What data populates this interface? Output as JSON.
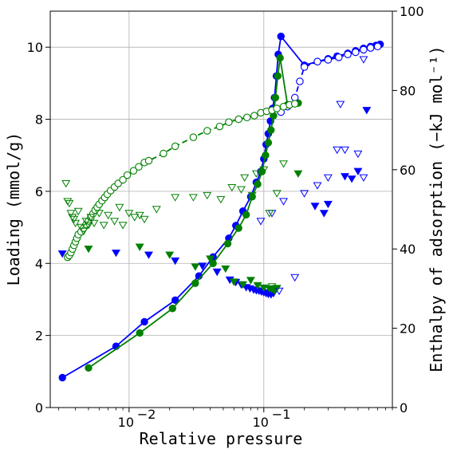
{
  "chart_data": {
    "type": "scatter",
    "xlabel": "Relative pressure",
    "ylabel": "Loading (mmol/g)",
    "y2label": "Enthalpy of adsorption (−kJ mol⁻¹)",
    "xscale": "log",
    "xlim": [
      0.0026,
      0.9
    ],
    "ylim": [
      0,
      11
    ],
    "y2lim": [
      0,
      100
    ],
    "grid": true,
    "x_ticks": [
      {
        "value": 0.01,
        "base": "10",
        "exp": "−2"
      },
      {
        "value": 0.1,
        "base": "10",
        "exp": "−1"
      }
    ],
    "y_ticks": [
      "0",
      "2",
      "4",
      "6",
      "8",
      "10"
    ],
    "y2_ticks": [
      "0",
      "20",
      "40",
      "60",
      "80",
      "100"
    ],
    "colors": {
      "blue": "#0000ff",
      "green": "#008000"
    },
    "series": [
      {
        "color": "#0000ff",
        "axis": "left",
        "marker": "filled-circle",
        "line": "solid",
        "points": [
          [
            0.0032,
            0.83
          ],
          [
            0.008,
            1.7
          ],
          [
            0.013,
            2.38
          ],
          [
            0.022,
            2.98
          ],
          [
            0.033,
            3.65
          ],
          [
            0.042,
            4.18
          ],
          [
            0.055,
            4.7
          ],
          [
            0.062,
            5.05
          ],
          [
            0.07,
            5.45
          ],
          [
            0.08,
            5.85
          ],
          [
            0.088,
            6.25
          ],
          [
            0.095,
            6.55
          ],
          [
            0.1,
            6.9
          ],
          [
            0.104,
            7.3
          ],
          [
            0.108,
            7.6
          ],
          [
            0.112,
            7.95
          ],
          [
            0.116,
            8.3
          ],
          [
            0.12,
            8.6
          ],
          [
            0.124,
            9.2
          ],
          [
            0.128,
            9.8
          ],
          [
            0.134,
            10.3
          ],
          [
            0.2,
            9.5
          ],
          [
            0.25,
            9.6
          ],
          [
            0.3,
            9.68
          ],
          [
            0.35,
            9.75
          ],
          [
            0.42,
            9.83
          ],
          [
            0.48,
            9.9
          ],
          [
            0.55,
            9.97
          ],
          [
            0.62,
            10.02
          ],
          [
            0.68,
            10.05
          ],
          [
            0.73,
            10.08
          ]
        ]
      },
      {
        "color": "#008000",
        "axis": "left",
        "marker": "filled-circle",
        "line": "solid",
        "points": [
          [
            0.005,
            1.1
          ],
          [
            0.012,
            2.07
          ],
          [
            0.021,
            2.75
          ],
          [
            0.031,
            3.45
          ],
          [
            0.042,
            4.0
          ],
          [
            0.054,
            4.55
          ],
          [
            0.065,
            4.98
          ],
          [
            0.074,
            5.35
          ],
          [
            0.082,
            5.85
          ],
          [
            0.09,
            6.2
          ],
          [
            0.097,
            6.55
          ],
          [
            0.103,
            7.0
          ],
          [
            0.108,
            7.35
          ],
          [
            0.113,
            7.7
          ],
          [
            0.118,
            8.1
          ],
          [
            0.122,
            8.6
          ],
          [
            0.127,
            9.2
          ],
          [
            0.132,
            9.7
          ],
          [
            0.15,
            8.4
          ],
          [
            0.18,
            8.45
          ]
        ]
      },
      {
        "color": "#0000ff",
        "axis": "left",
        "marker": "open-circle",
        "line": "dashed",
        "points": [
          [
            0.134,
            8.2
          ],
          [
            0.15,
            8.35
          ],
          [
            0.17,
            8.6
          ],
          [
            0.185,
            9.05
          ],
          [
            0.2,
            9.45
          ],
          [
            0.25,
            9.6
          ],
          [
            0.3,
            9.65
          ],
          [
            0.36,
            9.72
          ],
          [
            0.42,
            9.8
          ],
          [
            0.48,
            9.86
          ],
          [
            0.55,
            9.93
          ],
          [
            0.62,
            9.98
          ],
          [
            0.7,
            10.02
          ]
        ]
      },
      {
        "color": "#008000",
        "axis": "left",
        "marker": "open-circle",
        "line": "dashed",
        "points": [
          [
            0.0035,
            4.17
          ],
          [
            0.0036,
            4.22
          ],
          [
            0.0037,
            4.3
          ],
          [
            0.0038,
            4.4
          ],
          [
            0.0039,
            4.5
          ],
          [
            0.004,
            4.6
          ],
          [
            0.0041,
            4.7
          ],
          [
            0.0042,
            4.8
          ],
          [
            0.0044,
            4.88
          ],
          [
            0.0046,
            4.98
          ],
          [
            0.0048,
            5.08
          ],
          [
            0.005,
            5.18
          ],
          [
            0.0052,
            5.28
          ],
          [
            0.0054,
            5.38
          ],
          [
            0.0056,
            5.48
          ],
          [
            0.0058,
            5.56
          ],
          [
            0.006,
            5.64
          ],
          [
            0.0063,
            5.74
          ],
          [
            0.0066,
            5.83
          ],
          [
            0.0069,
            5.92
          ],
          [
            0.0073,
            6.02
          ],
          [
            0.0078,
            6.12
          ],
          [
            0.0083,
            6.22
          ],
          [
            0.009,
            6.32
          ],
          [
            0.0097,
            6.45
          ],
          [
            0.0108,
            6.57
          ],
          [
            0.0118,
            6.68
          ],
          [
            0.013,
            6.8
          ],
          [
            0.014,
            6.85
          ],
          [
            0.018,
            7.05
          ],
          [
            0.022,
            7.25
          ],
          [
            0.03,
            7.5
          ],
          [
            0.038,
            7.68
          ],
          [
            0.047,
            7.8
          ],
          [
            0.055,
            7.92
          ],
          [
            0.065,
            8.0
          ],
          [
            0.075,
            8.05
          ],
          [
            0.085,
            8.1
          ],
          [
            0.095,
            8.18
          ],
          [
            0.105,
            8.22
          ],
          [
            0.115,
            8.25
          ],
          [
            0.125,
            8.3
          ],
          [
            0.14,
            8.35
          ],
          [
            0.155,
            8.4
          ],
          [
            0.17,
            8.43
          ]
        ]
      },
      {
        "color": "#0000ff",
        "axis": "right",
        "marker": "filled-triangle-down",
        "line": "none",
        "points": [
          [
            0.0032,
            38.8
          ],
          [
            0.008,
            39.0
          ],
          [
            0.014,
            38.5
          ],
          [
            0.022,
            37.0
          ],
          [
            0.035,
            35.7
          ],
          [
            0.045,
            34.2
          ],
          [
            0.056,
            32.2
          ],
          [
            0.062,
            31.6
          ],
          [
            0.068,
            31.0
          ],
          [
            0.074,
            30.3
          ],
          [
            0.079,
            30.0
          ],
          [
            0.084,
            29.7
          ],
          [
            0.088,
            29.5
          ],
          [
            0.092,
            29.4
          ],
          [
            0.096,
            29.2
          ],
          [
            0.1,
            29.0
          ],
          [
            0.104,
            28.8
          ],
          [
            0.108,
            28.6
          ],
          [
            0.113,
            28.5
          ],
          [
            0.118,
            28.8
          ],
          [
            0.24,
            50.8
          ],
          [
            0.28,
            49.0
          ],
          [
            0.3,
            51.3
          ],
          [
            0.4,
            58.3
          ],
          [
            0.45,
            57.7
          ],
          [
            0.5,
            59.6
          ],
          [
            0.58,
            75.0
          ]
        ]
      },
      {
        "color": "#008000",
        "axis": "right",
        "marker": "filled-triangle-down",
        "line": "none",
        "points": [
          [
            0.005,
            40.0
          ],
          [
            0.012,
            40.5
          ],
          [
            0.02,
            38.5
          ],
          [
            0.031,
            35.5
          ],
          [
            0.04,
            37.5
          ],
          [
            0.052,
            35.0
          ],
          [
            0.06,
            31.7
          ],
          [
            0.07,
            31.0
          ],
          [
            0.08,
            32.1
          ],
          [
            0.09,
            30.8
          ],
          [
            0.1,
            30.2
          ],
          [
            0.11,
            30.0
          ],
          [
            0.115,
            29.8
          ],
          [
            0.12,
            29.8
          ],
          [
            0.125,
            30.1
          ],
          [
            0.18,
            59.0
          ]
        ]
      },
      {
        "color": "#0000ff",
        "axis": "right",
        "marker": "open-triangle-down",
        "line": "none",
        "points": [
          [
            0.095,
            47.0
          ],
          [
            0.115,
            49.0
          ],
          [
            0.14,
            52.0
          ],
          [
            0.2,
            54.0
          ],
          [
            0.25,
            56.0
          ],
          [
            0.3,
            58.0
          ],
          [
            0.35,
            65.0
          ],
          [
            0.4,
            65.0
          ],
          [
            0.5,
            64.0
          ],
          [
            0.55,
            58.0
          ],
          [
            0.37,
            76.5
          ],
          [
            0.55,
            87.8
          ],
          [
            0.13,
            29.4
          ],
          [
            0.17,
            32.8
          ]
        ]
      },
      {
        "color": "#008000",
        "axis": "right",
        "marker": "open-triangle-down",
        "line": "none",
        "points": [
          [
            0.0034,
            56.5
          ],
          [
            0.0035,
            52.0
          ],
          [
            0.0036,
            51.5
          ],
          [
            0.0037,
            49.0
          ],
          [
            0.0038,
            48.0
          ],
          [
            0.0039,
            47.5
          ],
          [
            0.004,
            46.5
          ],
          [
            0.0042,
            49.5
          ],
          [
            0.0044,
            45.5
          ],
          [
            0.0046,
            44.5
          ],
          [
            0.0048,
            47.0
          ],
          [
            0.005,
            46.0
          ],
          [
            0.0052,
            48.0
          ],
          [
            0.0055,
            46.5
          ],
          [
            0.006,
            49.0
          ],
          [
            0.0065,
            46.0
          ],
          [
            0.007,
            48.5
          ],
          [
            0.0078,
            47.0
          ],
          [
            0.0085,
            50.5
          ],
          [
            0.009,
            46.0
          ],
          [
            0.01,
            49.0
          ],
          [
            0.011,
            48.0
          ],
          [
            0.012,
            48.5
          ],
          [
            0.013,
            47.5
          ],
          [
            0.016,
            50.0
          ],
          [
            0.022,
            53.0
          ],
          [
            0.03,
            53.0
          ],
          [
            0.038,
            53.5
          ],
          [
            0.048,
            52.5
          ],
          [
            0.058,
            55.5
          ],
          [
            0.068,
            55.0
          ],
          [
            0.072,
            58.0
          ],
          [
            0.082,
            53.5
          ],
          [
            0.088,
            59.0
          ],
          [
            0.1,
            60.0
          ],
          [
            0.11,
            49.0
          ],
          [
            0.115,
            30.5
          ],
          [
            0.125,
            54.0
          ],
          [
            0.14,
            61.5
          ],
          [
            0.12,
            29.5
          ]
        ]
      }
    ]
  }
}
